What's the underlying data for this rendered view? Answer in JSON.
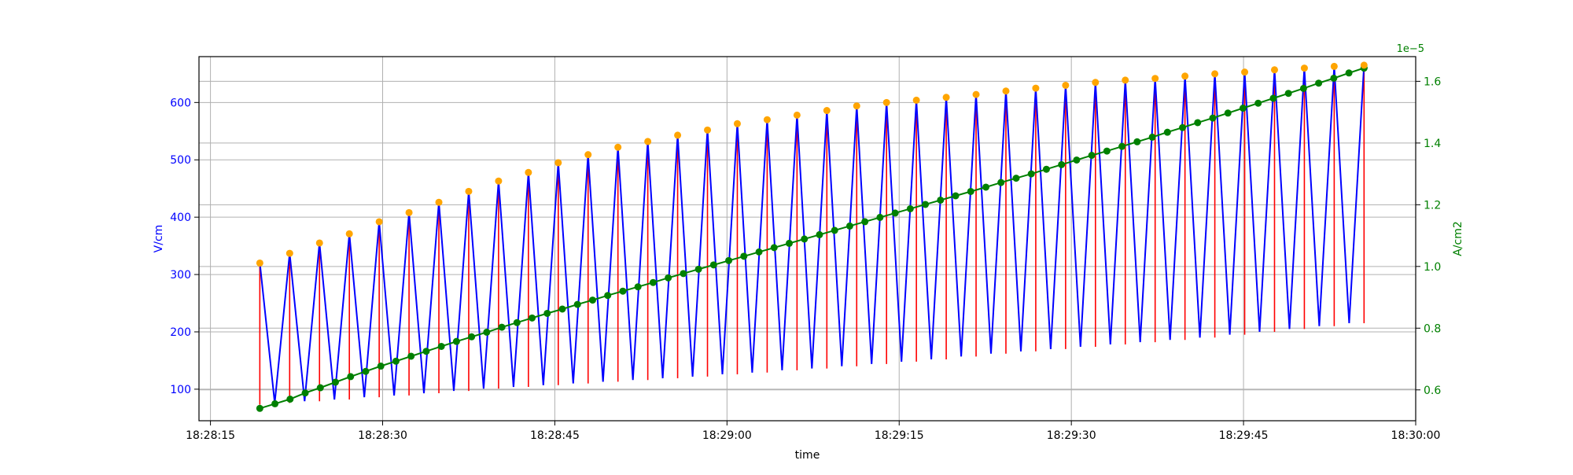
{
  "colors": {
    "voltage_line": "#0000ff",
    "vlines": "#ff0000",
    "peaks": "#ffa500",
    "current": "#008000",
    "grid": "#b0b0b0",
    "axes": "#000000"
  },
  "chart_data": {
    "type": "line",
    "xlabel": "time",
    "ylabel_left": "V/cm",
    "ylabel_right": "A/cm2",
    "right_axis_multiplier_label": "1e−5",
    "xlim": [
      "18:28:14",
      "18:30:00"
    ],
    "ylim_left": [
      45,
      680
    ],
    "ylim_right": [
      0.5,
      1.68
    ],
    "x_ticks": [
      "18:28:15",
      "18:28:30",
      "18:28:45",
      "18:29:00",
      "18:29:15",
      "18:29:30",
      "18:29:45",
      "18:30:00"
    ],
    "left_ticks": [
      100,
      200,
      300,
      400,
      500,
      600
    ],
    "right_ticks": [
      "0.6",
      "0.8",
      "1.0",
      "1.2",
      "1.4",
      "1.6"
    ],
    "grid": true,
    "legend": "none",
    "pulses": {
      "start_time": "18:28:19.3",
      "spacing_s": 2.6,
      "peak_values": [
        320,
        337,
        355,
        371,
        392,
        408,
        426,
        445,
        463,
        478,
        495,
        509,
        522,
        532,
        543,
        552,
        563,
        570,
        578,
        586,
        594,
        600,
        604,
        609,
        614,
        620,
        625,
        630,
        635,
        639,
        642,
        646,
        650,
        653,
        657,
        660,
        663,
        665
      ],
      "trough_values": [
        73,
        76,
        79,
        82,
        86,
        89,
        93,
        97,
        101,
        104,
        107,
        110,
        113,
        116,
        119,
        122,
        126,
        129,
        133,
        136,
        140,
        144,
        148,
        152,
        157,
        162,
        166,
        170,
        174,
        178,
        182,
        186,
        190,
        195,
        200,
        205,
        210,
        215,
        220,
        225
      ]
    },
    "series": [
      {
        "values": [
          0.54,
          0.555,
          0.57,
          0.59,
          0.607,
          0.625,
          0.643,
          0.66,
          0.677,
          0.693,
          0.709,
          0.725,
          0.741,
          0.757,
          0.772,
          0.787,
          0.803,
          0.818,
          0.833,
          0.848,
          0.862,
          0.877,
          0.891,
          0.906,
          0.92,
          0.934,
          0.948,
          0.963,
          0.977,
          0.991,
          1.005,
          1.019,
          1.033,
          1.047,
          1.061,
          1.075,
          1.089,
          1.103,
          1.117,
          1.131,
          1.145,
          1.159,
          1.173,
          1.187,
          1.201,
          1.215,
          1.229,
          1.243,
          1.257,
          1.272,
          1.286,
          1.3,
          1.315,
          1.33,
          1.345,
          1.36,
          1.374,
          1.389,
          1.404,
          1.419,
          1.435,
          1.45,
          1.466,
          1.481,
          1.497,
          1.513,
          1.529,
          1.545,
          1.561,
          1.577,
          1.594,
          1.61,
          1.627,
          1.643,
          1.643
        ]
      }
    ]
  }
}
